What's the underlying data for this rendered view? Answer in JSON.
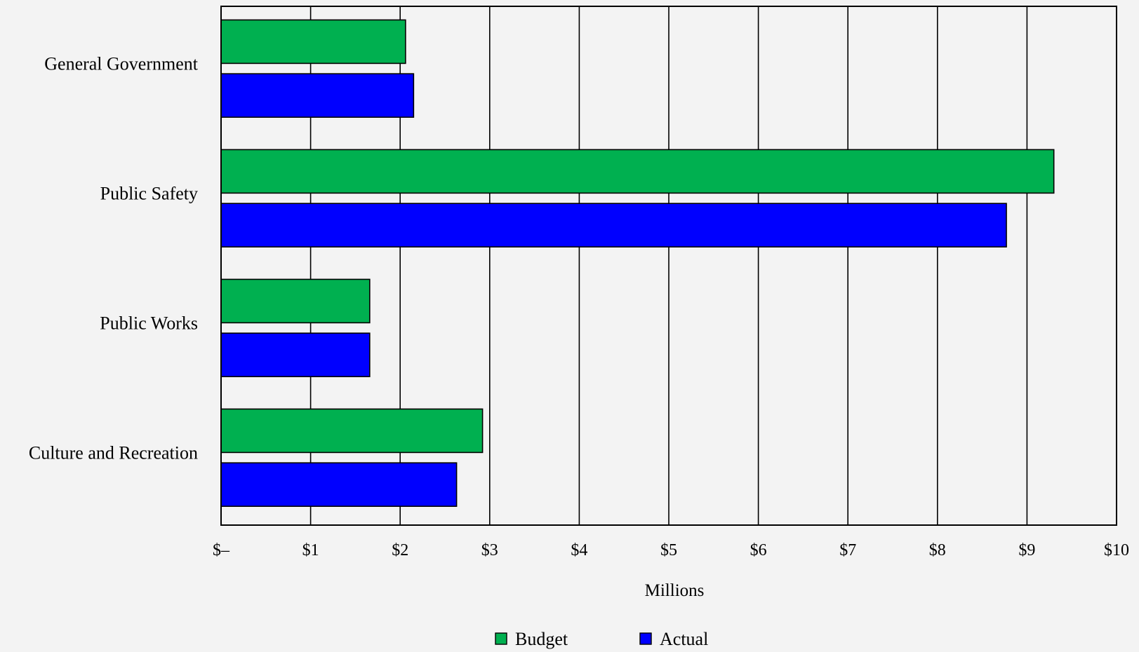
{
  "chart_data": {
    "type": "bar",
    "orientation": "horizontal",
    "categories": [
      "General Government",
      "Public Safety",
      "Public Works",
      "Culture and Recreation"
    ],
    "series": [
      {
        "name": "Budget",
        "values": [
          2.06,
          9.3,
          1.66,
          2.92
        ]
      },
      {
        "name": "Actual",
        "values": [
          2.15,
          8.77,
          1.66,
          2.63
        ]
      }
    ],
    "xlabel": "Millions",
    "x_ticks": [
      "$–",
      "$1",
      "$2",
      "$3",
      "$4",
      "$5",
      "$6",
      "$7",
      "$8",
      "$9",
      "$10"
    ],
    "xlim": [
      0,
      10
    ],
    "grid": "vertical",
    "legend_placement": "bottom-center",
    "colors": {
      "Budget": "#00b050",
      "Actual": "#0000ff",
      "background": "#f3f3f3"
    }
  }
}
